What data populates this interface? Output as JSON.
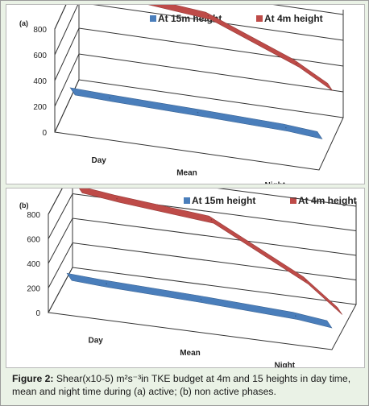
{
  "chart_data": [
    {
      "type": "area",
      "panel_label": "(a)",
      "categories": [
        "Day",
        "Mean",
        "Night"
      ],
      "series": [
        {
          "name": "At 15m height",
          "color": "#4a7ebb",
          "values": [
            200,
            185,
            165
          ]
        },
        {
          "name": "At 4m height",
          "color": "#be4b48",
          "values": [
            825,
            760,
            490
          ]
        }
      ],
      "yticks": [
        0,
        200,
        400,
        600,
        800
      ],
      "ylim": [
        0,
        800
      ],
      "legend": "top",
      "grid": true,
      "style": "3d"
    },
    {
      "type": "area",
      "panel_label": "(b)",
      "categories": [
        "Day",
        "Mean",
        "Night"
      ],
      "series": [
        {
          "name": "At 15m height",
          "color": "#4a7ebb",
          "values": [
            185,
            160,
            125
          ]
        },
        {
          "name": "At 4m height",
          "color": "#be4b48",
          "values": [
            720,
            650,
            255
          ]
        }
      ],
      "yticks": [
        0,
        200,
        400,
        600,
        800
      ],
      "ylim": [
        0,
        800
      ],
      "legend": "top",
      "grid": true,
      "style": "3d"
    }
  ],
  "caption": {
    "label": "Figure 2:",
    "text": " Shear(x10-5) m²s⁻³in TKE budget at 4m and 15 heights in day time, mean and night time during (a) active; (b) non active phases."
  }
}
